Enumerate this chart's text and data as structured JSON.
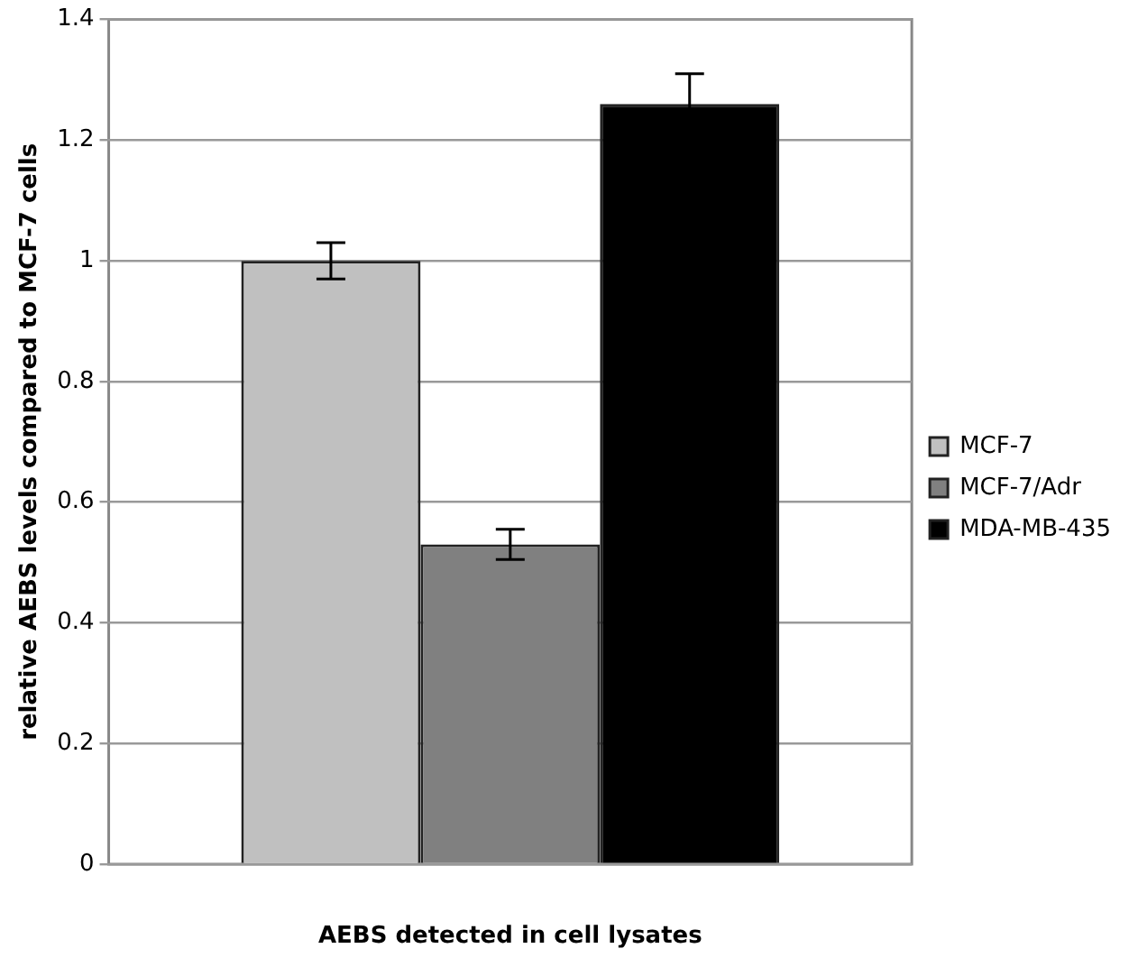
{
  "chart_data": {
    "type": "bar",
    "xlabel": "AEBS detected in cell lysates",
    "ylabel": "relative AEBS levels compared to MCF-7 cells",
    "categories": [
      null
    ],
    "series": [
      {
        "name": "MCF-7",
        "color": "#c0c0c0",
        "values": [
          1.0
        ],
        "errors": [
          0.03
        ]
      },
      {
        "name": "MCF-7/Adr",
        "color": "#808080",
        "values": [
          0.53
        ],
        "errors": [
          0.025
        ]
      },
      {
        "name": "MDA-MB-435",
        "color": "#000000",
        "values": [
          1.26
        ],
        "errors": [
          0.05
        ]
      }
    ],
    "ylim": [
      0,
      1.4
    ],
    "yticks": [
      0,
      0.2,
      0.4,
      0.6,
      0.8,
      1,
      1.2,
      1.4
    ],
    "grid": "y",
    "legend": "right"
  }
}
